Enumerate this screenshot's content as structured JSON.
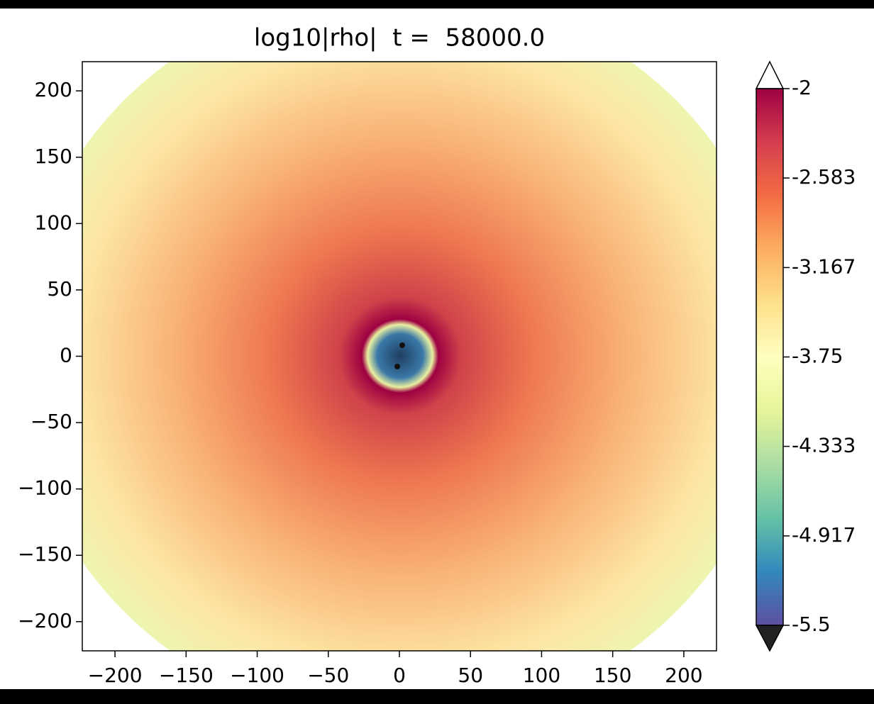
{
  "chart_data": {
    "type": "image",
    "title": "log10|rho|  t =  58000.0",
    "xlim": [
      -223,
      223
    ],
    "ylim": [
      -222,
      222
    ],
    "xticks": [
      {
        "value": -200,
        "label": "−200"
      },
      {
        "value": -150,
        "label": "−150"
      },
      {
        "value": -100,
        "label": "−100"
      },
      {
        "value": -50,
        "label": "−50"
      },
      0,
      50,
      100,
      150,
      200
    ],
    "yticks": [
      {
        "value": -200,
        "label": "−200"
      },
      {
        "value": -150,
        "label": "−150"
      },
      {
        "value": -100,
        "label": "−100"
      },
      {
        "value": -50,
        "label": "−50"
      },
      0,
      50,
      100,
      150,
      200
    ],
    "colorbar": {
      "clim": [
        -5.5,
        -2
      ],
      "ticks": [
        -2,
        -2.583,
        -3.167,
        -3.75,
        -4.333,
        -4.917,
        -5.5
      ],
      "colors": [
        "#5e4fa2",
        "#3288bd",
        "#66c2a5",
        "#abdda4",
        "#e6f598",
        "#ffffbf",
        "#fee08b",
        "#fdae61",
        "#f46d43",
        "#d53e4f",
        "#9e0142"
      ],
      "extend_colors": [
        "#222222",
        "#ffffff"
      ]
    }
  }
}
